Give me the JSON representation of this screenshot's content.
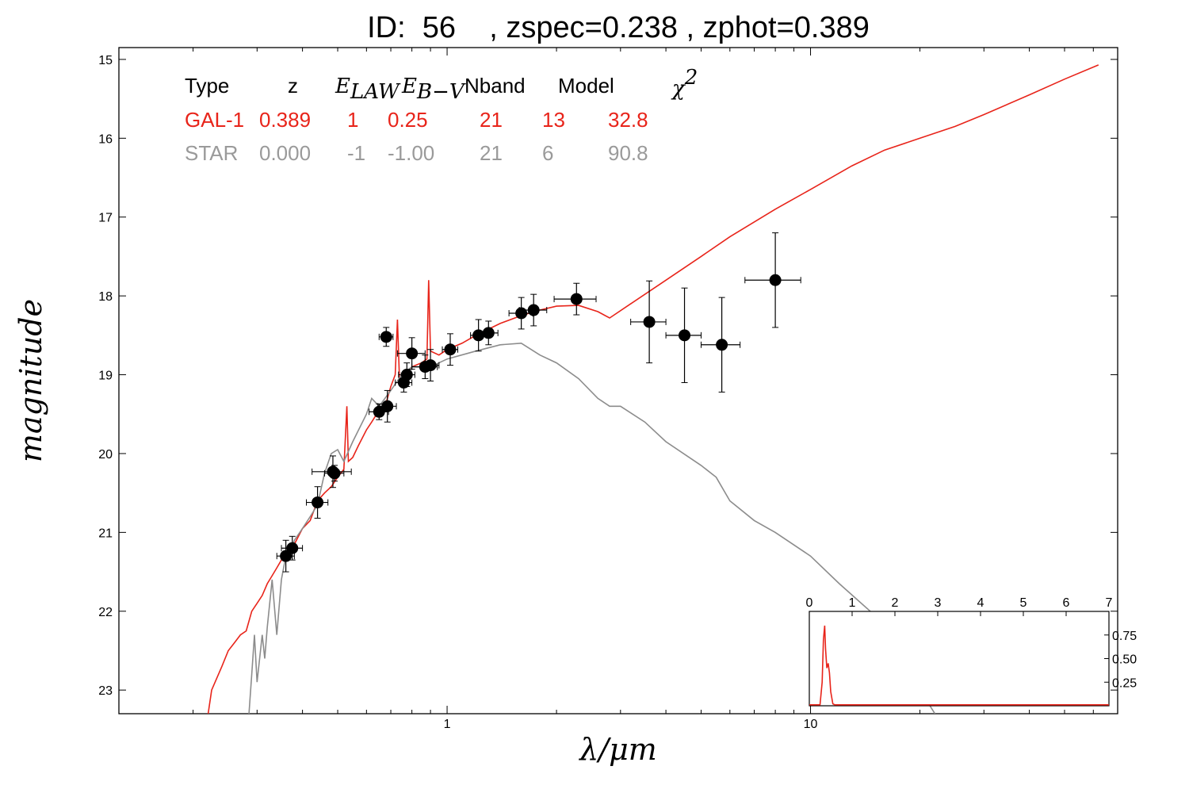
{
  "title": "ID:  56    , zspec=0.238 , zphot=0.389",
  "table": {
    "headers": [
      "Type",
      "z",
      "E",
      "LAW",
      "E",
      "B−V",
      "Nband",
      "Model",
      "χ",
      "2"
    ],
    "rows": [
      {
        "values": [
          "GAL-1",
          "0.389",
          "1",
          "0.25",
          "21",
          "13",
          "32.8"
        ],
        "color": "#e8241a"
      },
      {
        "values": [
          "STAR",
          "0.000",
          "-1",
          "-1.00",
          "21",
          "6",
          "90.8"
        ],
        "color": "#9a9a9a"
      }
    ]
  },
  "chart_data": {
    "type": "scatter",
    "xlabel": "λ/μm",
    "ylabel": "magnitude",
    "xscale": "log",
    "xlim": [
      0.125,
      70
    ],
    "ylim": [
      23.3,
      14.85
    ],
    "yaxis_inverted": true,
    "xticks": [
      1,
      10
    ],
    "xtick_labels": [
      "1",
      "10"
    ],
    "yticks": [
      15,
      16,
      17,
      18,
      19,
      20,
      21,
      22,
      23
    ],
    "ytick_labels": [
      "15",
      "16",
      "17",
      "18",
      "19",
      "20",
      "21",
      "22",
      "23"
    ],
    "observations": [
      {
        "x": 0.36,
        "y": 21.3,
        "xerr": 0.02,
        "yerr": 0.2
      },
      {
        "x": 0.375,
        "y": 21.2,
        "xerr": 0.025,
        "yerr": 0.15
      },
      {
        "x": 0.44,
        "y": 20.62,
        "xerr": 0.03,
        "yerr": 0.2
      },
      {
        "x": 0.485,
        "y": 20.23,
        "xerr": 0.06,
        "yerr": 0.2
      },
      {
        "x": 0.49,
        "y": 20.25,
        "xerr": 0.03,
        "yerr": 0.1
      },
      {
        "x": 0.65,
        "y": 19.47,
        "xerr": 0.04,
        "yerr": 0.1
      },
      {
        "x": 0.685,
        "y": 19.4,
        "xerr": 0.04,
        "yerr": 0.2
      },
      {
        "x": 0.68,
        "y": 18.52,
        "xerr": 0.03,
        "yerr": 0.12
      },
      {
        "x": 0.76,
        "y": 19.1,
        "xerr": 0.04,
        "yerr": 0.12
      },
      {
        "x": 0.775,
        "y": 19.0,
        "xerr": 0.04,
        "yerr": 0.15
      },
      {
        "x": 0.8,
        "y": 18.73,
        "xerr": 0.07,
        "yerr": 0.2
      },
      {
        "x": 0.87,
        "y": 18.9,
        "xerr": 0.07,
        "yerr": 0.15
      },
      {
        "x": 0.9,
        "y": 18.88,
        "xerr": 0.05,
        "yerr": 0.2
      },
      {
        "x": 1.02,
        "y": 18.68,
        "xerr": 0.05,
        "yerr": 0.2
      },
      {
        "x": 1.22,
        "y": 18.5,
        "xerr": 0.06,
        "yerr": 0.2
      },
      {
        "x": 1.3,
        "y": 18.47,
        "xerr": 0.08,
        "yerr": 0.15
      },
      {
        "x": 1.6,
        "y": 18.22,
        "xerr": 0.12,
        "yerr": 0.2
      },
      {
        "x": 1.73,
        "y": 18.18,
        "xerr": 0.15,
        "yerr": 0.2
      },
      {
        "x": 2.27,
        "y": 18.04,
        "xerr": 0.3,
        "yerr": 0.2
      },
      {
        "x": 3.6,
        "y": 18.33,
        "xerr": 0.4,
        "yerr": 0.52
      },
      {
        "x": 4.5,
        "y": 18.5,
        "xerr": 0.5,
        "yerr": 0.6
      },
      {
        "x": 5.7,
        "y": 18.62,
        "xerr": 0.7,
        "yerr": 0.6
      },
      {
        "x": 8.0,
        "y": 17.8,
        "xerr": 1.4,
        "yerr": 0.6
      }
    ],
    "series": [
      {
        "color": "#e8241a",
        "points": [
          [
            0.22,
            23.3
          ],
          [
            0.225,
            23.0
          ],
          [
            0.24,
            22.7
          ],
          [
            0.25,
            22.5
          ],
          [
            0.26,
            22.4
          ],
          [
            0.27,
            22.3
          ],
          [
            0.28,
            22.25
          ],
          [
            0.29,
            22.0
          ],
          [
            0.3,
            21.9
          ],
          [
            0.31,
            21.8
          ],
          [
            0.32,
            21.65
          ],
          [
            0.33,
            21.55
          ],
          [
            0.34,
            21.45
          ],
          [
            0.35,
            21.35
          ],
          [
            0.36,
            21.25
          ],
          [
            0.38,
            21.15
          ],
          [
            0.4,
            20.95
          ],
          [
            0.42,
            20.85
          ],
          [
            0.44,
            20.6
          ],
          [
            0.46,
            20.5
          ],
          [
            0.48,
            20.42
          ],
          [
            0.5,
            20.3
          ],
          [
            0.52,
            20.2
          ],
          [
            0.53,
            19.4
          ],
          [
            0.535,
            20.1
          ],
          [
            0.55,
            20.05
          ],
          [
            0.57,
            19.9
          ],
          [
            0.6,
            19.7
          ],
          [
            0.62,
            19.6
          ],
          [
            0.65,
            19.45
          ],
          [
            0.68,
            19.35
          ],
          [
            0.7,
            19.15
          ],
          [
            0.72,
            19.0
          ],
          [
            0.73,
            18.3
          ],
          [
            0.74,
            19.1
          ],
          [
            0.76,
            19.0
          ],
          [
            0.8,
            18.9
          ],
          [
            0.85,
            18.85
          ],
          [
            0.88,
            18.8
          ],
          [
            0.89,
            17.8
          ],
          [
            0.9,
            18.7
          ],
          [
            0.95,
            18.75
          ],
          [
            1.0,
            18.68
          ],
          [
            1.1,
            18.6
          ],
          [
            1.2,
            18.5
          ],
          [
            1.4,
            18.35
          ],
          [
            1.6,
            18.25
          ],
          [
            1.8,
            18.18
          ],
          [
            2.0,
            18.13
          ],
          [
            2.3,
            18.12
          ],
          [
            2.6,
            18.2
          ],
          [
            2.8,
            18.28
          ],
          [
            3.2,
            18.1
          ],
          [
            4.0,
            17.8
          ],
          [
            5.0,
            17.5
          ],
          [
            6.0,
            17.25
          ],
          [
            8.0,
            16.9
          ],
          [
            10.0,
            16.65
          ],
          [
            13.0,
            16.35
          ],
          [
            16.0,
            16.15
          ],
          [
            20.0,
            16.0
          ],
          [
            25.0,
            15.85
          ],
          [
            30.0,
            15.7
          ],
          [
            40.0,
            15.45
          ],
          [
            50.0,
            15.25
          ],
          [
            62.0,
            15.07
          ]
        ]
      },
      {
        "color": "#8c8c8c",
        "points": [
          [
            0.285,
            23.3
          ],
          [
            0.29,
            22.8
          ],
          [
            0.295,
            22.3
          ],
          [
            0.3,
            22.9
          ],
          [
            0.31,
            22.3
          ],
          [
            0.315,
            22.6
          ],
          [
            0.32,
            22.2
          ],
          [
            0.33,
            21.6
          ],
          [
            0.34,
            22.3
          ],
          [
            0.35,
            21.6
          ],
          [
            0.36,
            21.3
          ],
          [
            0.37,
            21.25
          ],
          [
            0.38,
            21.1
          ],
          [
            0.4,
            20.95
          ],
          [
            0.42,
            20.8
          ],
          [
            0.44,
            20.65
          ],
          [
            0.46,
            20.25
          ],
          [
            0.48,
            20.0
          ],
          [
            0.5,
            19.95
          ],
          [
            0.52,
            20.1
          ],
          [
            0.55,
            19.85
          ],
          [
            0.6,
            19.5
          ],
          [
            0.62,
            19.3
          ],
          [
            0.65,
            19.4
          ],
          [
            0.7,
            19.2
          ],
          [
            0.75,
            19.0
          ],
          [
            0.8,
            18.9
          ],
          [
            0.9,
            18.9
          ],
          [
            1.0,
            18.8
          ],
          [
            1.2,
            18.7
          ],
          [
            1.4,
            18.62
          ],
          [
            1.6,
            18.6
          ],
          [
            1.8,
            18.75
          ],
          [
            2.0,
            18.85
          ],
          [
            2.3,
            19.05
          ],
          [
            2.6,
            19.3
          ],
          [
            2.8,
            19.4
          ],
          [
            3.0,
            19.4
          ],
          [
            3.5,
            19.6
          ],
          [
            4.0,
            19.85
          ],
          [
            5.0,
            20.15
          ],
          [
            5.5,
            20.3
          ],
          [
            6.0,
            20.6
          ],
          [
            7.0,
            20.85
          ],
          [
            8.0,
            21.0
          ],
          [
            10.0,
            21.3
          ],
          [
            12.0,
            21.65
          ],
          [
            15.0,
            22.05
          ],
          [
            18.0,
            22.6
          ],
          [
            20.0,
            23.0
          ],
          [
            22.0,
            23.3
          ]
        ]
      }
    ],
    "inset": {
      "type": "line",
      "xlim": [
        0,
        7
      ],
      "ylim": [
        0,
        1.0
      ],
      "xticks": [
        0,
        1,
        2,
        3,
        4,
        5,
        6,
        7
      ],
      "xtick_labels": [
        "0",
        "1",
        "2",
        "3",
        "4",
        "5",
        "6",
        "7"
      ],
      "yticks": [
        0.25,
        0.5,
        0.75
      ],
      "ytick_labels": [
        "0.25",
        "0.50",
        "0.75"
      ],
      "color": "#e8241a",
      "points": [
        [
          0,
          0.01
        ],
        [
          0.25,
          0.01
        ],
        [
          0.3,
          0.25
        ],
        [
          0.33,
          0.7
        ],
        [
          0.36,
          0.85
        ],
        [
          0.38,
          0.6
        ],
        [
          0.41,
          0.4
        ],
        [
          0.44,
          0.45
        ],
        [
          0.47,
          0.35
        ],
        [
          0.5,
          0.15
        ],
        [
          0.55,
          0.02
        ],
        [
          0.6,
          0.01
        ],
        [
          7,
          0.01
        ]
      ]
    }
  }
}
